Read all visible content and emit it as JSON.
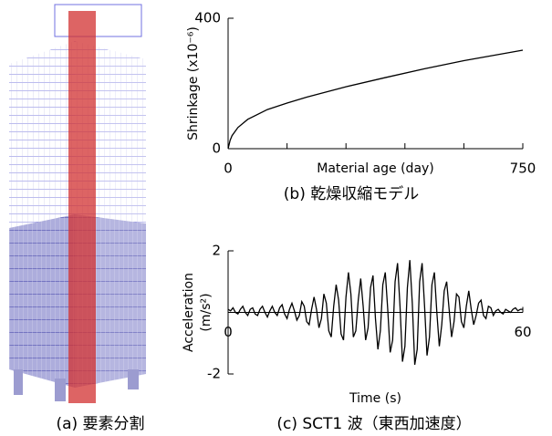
{
  "figure_a": {
    "caption": "(a) 要素分割"
  },
  "chart_data": [
    {
      "type": "line",
      "caption": "(b) 乾燥収縮モデル",
      "xlabel": "Material age (day)",
      "ylabel": [
        "Shrinkage (x10⁻⁶)"
      ],
      "x": [
        0,
        5,
        10,
        25,
        50,
        100,
        150,
        200,
        300,
        400,
        500,
        600,
        750
      ],
      "values": [
        0,
        25,
        40,
        65,
        90,
        120,
        140,
        158,
        190,
        218,
        245,
        270,
        302
      ],
      "color": "#000000",
      "xlim": [
        0,
        750
      ],
      "ylim": [
        0,
        400
      ],
      "xticks": [
        0,
        750
      ],
      "xminorticks": [
        150,
        300,
        450,
        600
      ],
      "yticks": [
        0,
        400
      ]
    },
    {
      "type": "line",
      "caption": "(c) SCT1 波（東西加速度）",
      "xlabel": "Time (s)",
      "ylabel": [
        "Acceleration",
        "(m/s²)"
      ],
      "x": [
        0,
        0.5,
        1,
        1.5,
        2,
        2.5,
        3,
        3.5,
        4,
        4.5,
        5,
        5.5,
        6,
        6.5,
        7,
        7.5,
        8,
        8.5,
        9,
        9.5,
        10,
        10.5,
        11,
        11.5,
        12,
        12.5,
        13,
        13.5,
        14,
        14.5,
        15,
        15.5,
        16,
        16.5,
        17,
        17.5,
        18,
        18.5,
        19,
        19.5,
        20,
        20.5,
        21,
        21.5,
        22,
        22.5,
        23,
        23.5,
        24,
        24.5,
        25,
        25.5,
        26,
        26.5,
        27,
        27.5,
        28,
        28.5,
        29,
        29.5,
        30,
        30.5,
        31,
        31.5,
        32,
        32.5,
        33,
        33.5,
        34,
        34.5,
        35,
        35.5,
        36,
        36.5,
        37,
        37.5,
        38,
        38.5,
        39,
        39.5,
        40,
        40.5,
        41,
        41.5,
        42,
        42.5,
        43,
        43.5,
        44,
        44.5,
        45,
        45.5,
        46,
        46.5,
        47,
        47.5,
        48,
        48.5,
        49,
        49.5,
        50,
        50.5,
        51,
        51.5,
        52,
        52.5,
        53,
        53.5,
        54,
        54.5,
        55,
        55.5,
        56,
        56.5,
        57,
        57.5,
        58,
        58.5,
        59,
        59.5,
        60
      ],
      "values": [
        0.1,
        0.05,
        0.15,
        0.0,
        -0.05,
        0.1,
        0.2,
        0.0,
        -0.1,
        0.1,
        0.15,
        -0.05,
        -0.1,
        0.1,
        0.2,
        0.0,
        -0.15,
        0.05,
        0.2,
        0.0,
        -0.1,
        0.15,
        0.25,
        -0.05,
        -0.2,
        0.1,
        0.3,
        0.05,
        -0.25,
        -0.1,
        0.35,
        0.2,
        -0.3,
        -0.4,
        0.1,
        0.5,
        0.1,
        -0.5,
        -0.2,
        0.6,
        0.3,
        -0.6,
        -0.8,
        0.2,
        0.9,
        0.4,
        -0.7,
        -0.9,
        0.5,
        1.3,
        0.6,
        -0.8,
        -0.6,
        0.4,
        1.1,
        0.2,
        -0.9,
        -0.5,
        0.8,
        1.2,
        -0.2,
        -1.2,
        -0.6,
        0.9,
        1.3,
        0.1,
        -1.3,
        -0.9,
        1.0,
        1.6,
        0.2,
        -1.6,
        -1.1,
        0.8,
        1.7,
        0.3,
        -1.7,
        -1.2,
        1.0,
        1.6,
        0.2,
        -1.4,
        -0.8,
        0.9,
        1.3,
        0.0,
        -1.1,
        -0.4,
        0.7,
        1.0,
        0.1,
        -0.8,
        -0.3,
        0.6,
        0.5,
        -0.3,
        -0.5,
        0.2,
        0.7,
        0.1,
        -0.4,
        -0.1,
        0.3,
        0.4,
        -0.1,
        -0.2,
        0.2,
        0.15,
        -0.1,
        0.05,
        0.1,
        0.0,
        -0.05,
        0.1,
        0.05,
        0.0,
        0.1,
        0.15,
        0.05,
        0.1,
        0.1
      ],
      "color": "#000000",
      "xlim": [
        0,
        60
      ],
      "ylim": [
        -2,
        2
      ],
      "xticks": [
        0,
        60
      ],
      "yticks": [
        -2,
        2
      ]
    }
  ]
}
